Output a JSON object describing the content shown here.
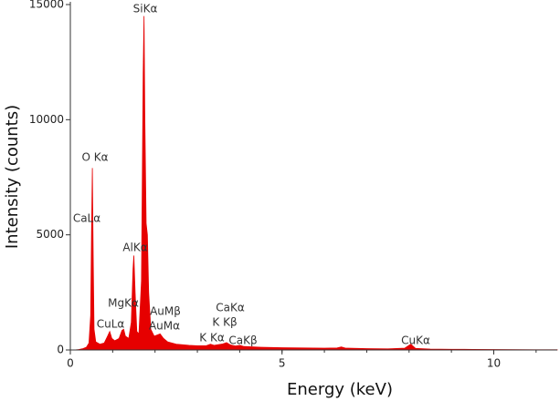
{
  "chart_data": {
    "type": "area",
    "x_label": "Energy (keV)",
    "y_label": "Intensity (counts)",
    "x": [
      0,
      0.1,
      0.2,
      0.3,
      0.38,
      0.44,
      0.48,
      0.5,
      0.52,
      0.54,
      0.56,
      0.6,
      0.7,
      0.8,
      0.88,
      0.93,
      0.98,
      1.05,
      1.15,
      1.22,
      1.26,
      1.3,
      1.38,
      1.44,
      1.48,
      1.5,
      1.53,
      1.57,
      1.62,
      1.68,
      1.72,
      1.74,
      1.76,
      1.79,
      1.82,
      1.85,
      1.9,
      1.98,
      2.05,
      2.12,
      2.2,
      2.3,
      2.5,
      2.8,
      3.0,
      3.2,
      3.31,
      3.4,
      3.6,
      3.69,
      3.78,
      3.9,
      4.01,
      4.1,
      4.5,
      5.0,
      5.5,
      6.0,
      6.3,
      6.4,
      6.5,
      7.0,
      7.5,
      7.9,
      8.04,
      8.15,
      8.5,
      9.0,
      9.5,
      10.0,
      10.5,
      11.0,
      11.5
    ],
    "values": [
      0,
      0,
      20,
      60,
      120,
      300,
      1500,
      5000,
      7900,
      4000,
      900,
      350,
      250,
      300,
      600,
      800,
      500,
      400,
      500,
      850,
      900,
      600,
      500,
      1200,
      3500,
      4100,
      2500,
      800,
      700,
      3000,
      12000,
      14500,
      10000,
      5500,
      5000,
      2500,
      900,
      600,
      650,
      700,
      500,
      350,
      250,
      200,
      180,
      180,
      250,
      200,
      260,
      320,
      220,
      170,
      200,
      150,
      120,
      100,
      90,
      80,
      90,
      130,
      80,
      60,
      50,
      80,
      250,
      70,
      40,
      30,
      25,
      20,
      15,
      10,
      10
    ],
    "color": "#e60000",
    "xlim": [
      0,
      11.5
    ],
    "xticks": [
      0,
      5,
      10
    ],
    "ylim": [
      0,
      15000
    ],
    "yticks": [
      0,
      5000,
      10000,
      15000
    ],
    "annotations": [
      "SiKα",
      "O Kα",
      "CaLα",
      "AlKα",
      "MgKα",
      "AuMβ",
      "CuLα",
      "AuMα",
      "CaKα",
      "K Kβ",
      "K Kα",
      "CaKβ",
      "CuKα"
    ]
  }
}
